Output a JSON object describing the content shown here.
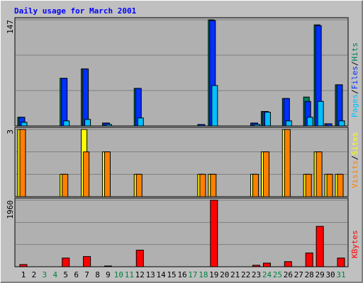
{
  "chart_data": [
    {
      "type": "bar",
      "title": "Daily usage for March 2001",
      "ylim": [
        0,
        147
      ],
      "yticks": [
        147
      ],
      "grid_divisions": 3,
      "legend_separator": "/",
      "series": [
        {
          "name": "Hits",
          "color": "#008060",
          "values": [
            12,
            0,
            0,
            0,
            66,
            0,
            79,
            0,
            4,
            0,
            0,
            52,
            0,
            0,
            0,
            0,
            0,
            2,
            147,
            0,
            0,
            0,
            4,
            20,
            0,
            38,
            0,
            40,
            140,
            3,
            57
          ]
        },
        {
          "name": "Files",
          "color": "#0030FF",
          "values": [
            12,
            0,
            0,
            0,
            66,
            0,
            79,
            0,
            4,
            0,
            0,
            52,
            0,
            0,
            0,
            0,
            0,
            2,
            146,
            0,
            0,
            0,
            4,
            20,
            0,
            38,
            0,
            34,
            139,
            3,
            57
          ]
        },
        {
          "name": "Pages",
          "color": "#00C0FF",
          "values": [
            5,
            0,
            0,
            0,
            7,
            0,
            9,
            0,
            2,
            0,
            0,
            11,
            0,
            0,
            0,
            0,
            0,
            0,
            56,
            0,
            0,
            0,
            2,
            19,
            0,
            7,
            0,
            12,
            34,
            0,
            7
          ]
        }
      ]
    },
    {
      "type": "bar",
      "ylim": [
        0,
        3
      ],
      "yticks": [
        3
      ],
      "grid_divisions": 3,
      "legend_separator": "/",
      "series": [
        {
          "name": "Sites",
          "color": "#FFFF00",
          "values": [
            3,
            0,
            0,
            0,
            1,
            0,
            3,
            0,
            2,
            0,
            0,
            1,
            0,
            0,
            0,
            0,
            0,
            1,
            1,
            0,
            0,
            0,
            1,
            2,
            0,
            3,
            0,
            1,
            2,
            1,
            1
          ]
        },
        {
          "name": "Visits",
          "color": "#FF8000",
          "values": [
            3,
            0,
            0,
            0,
            1,
            0,
            2,
            0,
            2,
            0,
            0,
            1,
            0,
            0,
            0,
            0,
            0,
            1,
            1,
            0,
            0,
            0,
            1,
            2,
            0,
            3,
            0,
            1,
            2,
            1,
            1
          ]
        }
      ]
    },
    {
      "type": "bar",
      "ylim": [
        0,
        1960
      ],
      "yticks": [
        1960
      ],
      "grid_divisions": 3,
      "categories": [
        "1",
        "2",
        "3",
        "4",
        "5",
        "6",
        "7",
        "8",
        "9",
        "10",
        "11",
        "12",
        "13",
        "14",
        "15",
        "16",
        "17",
        "18",
        "19",
        "20",
        "21",
        "22",
        "23",
        "24",
        "25",
        "26",
        "27",
        "28",
        "29",
        "30",
        "31"
      ],
      "weekend_days": [
        3,
        4,
        10,
        11,
        17,
        18,
        24,
        25,
        31
      ],
      "weekend_color": "#008040",
      "series": [
        {
          "name": "KBytes",
          "color": "#FF0000",
          "values": [
            64,
            0,
            0,
            0,
            256,
            0,
            300,
            0,
            21,
            0,
            0,
            490,
            0,
            0,
            0,
            0,
            0,
            0,
            1960,
            0,
            0,
            0,
            43,
            107,
            0,
            150,
            0,
            405,
            1190,
            0,
            256
          ]
        }
      ]
    }
  ]
}
